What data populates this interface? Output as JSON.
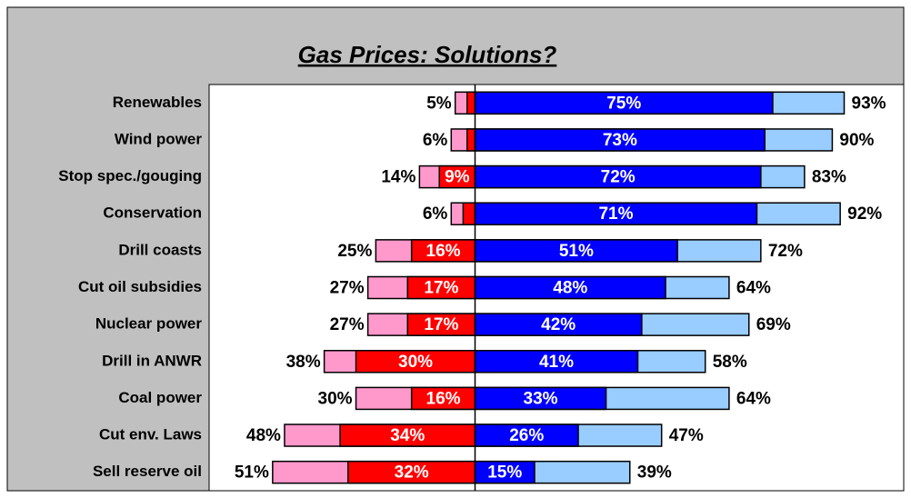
{
  "chart_data": {
    "type": "diverging-bar",
    "title": "Gas Prices: Solutions?",
    "categories": [
      "Renewables",
      "Wind power",
      "Stop spec./gouging",
      "Conservation",
      "Drill coasts",
      "Cut oil subsidies",
      "Nuclear power",
      "Drill in ANWR",
      "Coal power",
      "Cut env. Laws",
      "Sell reserve oil"
    ],
    "oppose_total": {
      "color": "#ff99cc",
      "values": [
        5,
        6,
        14,
        6,
        25,
        27,
        27,
        38,
        30,
        48,
        51
      ],
      "value_labels": [
        "5%",
        "6%",
        "14%",
        "6%",
        "25%",
        "27%",
        "27%",
        "38%",
        "30%",
        "48%",
        "51%"
      ]
    },
    "oppose_strong": {
      "color": "#ff0000",
      "values": [
        2,
        2,
        9,
        3,
        16,
        17,
        17,
        30,
        16,
        34,
        32
      ],
      "value_labels": [
        null,
        null,
        "9%",
        null,
        "16%",
        "17%",
        "17%",
        "30%",
        "16%",
        "34%",
        "32%"
      ]
    },
    "support_strong": {
      "color": "#0000ff",
      "values": [
        75,
        73,
        72,
        71,
        51,
        48,
        42,
        41,
        33,
        26,
        15
      ],
      "value_labels": [
        "75%",
        "73%",
        "72%",
        "71%",
        "51%",
        "48%",
        "42%",
        "41%",
        "33%",
        "26%",
        "15%"
      ]
    },
    "support_total": {
      "color": "#99ccff",
      "values": [
        93,
        90,
        83,
        92,
        72,
        64,
        69,
        58,
        64,
        47,
        39
      ],
      "value_labels": [
        "93%",
        "90%",
        "83%",
        "92%",
        "72%",
        "64%",
        "69%",
        "58%",
        "64%",
        "47%",
        "39%"
      ]
    },
    "xlim": [
      -67,
      108
    ]
  }
}
